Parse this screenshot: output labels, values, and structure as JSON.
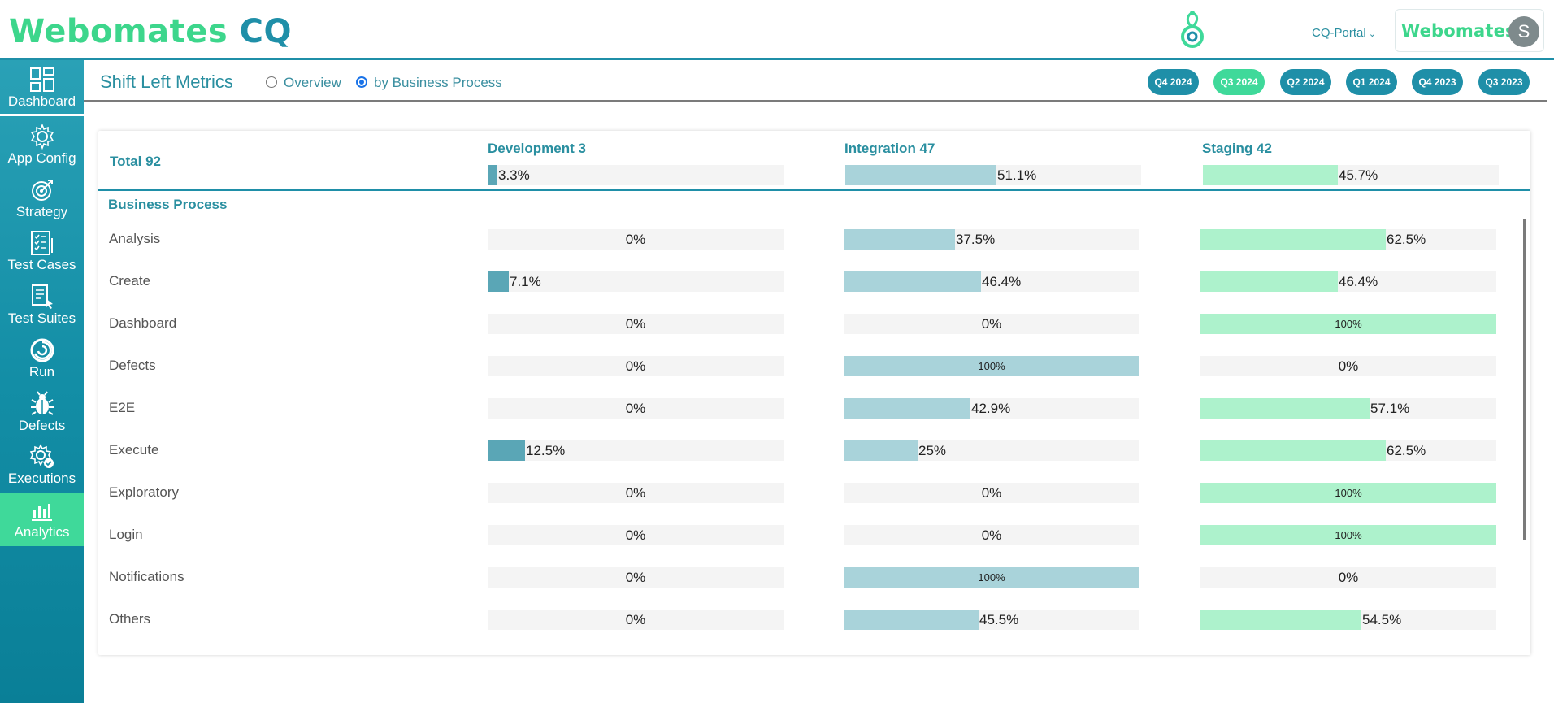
{
  "header": {
    "logo_main": "Webomates",
    "logo_accent": "CQ",
    "portal_label": "CQ-Portal",
    "brand_name": "Webomates",
    "avatar_letter": "S"
  },
  "sidebar": {
    "items": [
      {
        "label": "Dashboard",
        "icon": "dashboard-icon"
      },
      {
        "label": "App Config",
        "icon": "gear-icon"
      },
      {
        "label": "Strategy",
        "icon": "target-icon"
      },
      {
        "label": "Test Cases",
        "icon": "test-cases-icon"
      },
      {
        "label": "Test Suites",
        "icon": "test-suites-icon"
      },
      {
        "label": "Run",
        "icon": "run-icon"
      },
      {
        "label": "Defects",
        "icon": "bug-icon"
      },
      {
        "label": "Executions",
        "icon": "executions-icon"
      },
      {
        "label": "Analytics",
        "icon": "analytics-icon",
        "active": true
      }
    ]
  },
  "page": {
    "title": "Shift Left Metrics",
    "views": [
      {
        "label": "Overview",
        "selected": false
      },
      {
        "label": "by Business Process",
        "selected": true
      }
    ],
    "quarters": [
      {
        "label": "Q4 2024",
        "active": false
      },
      {
        "label": "Q3 2024",
        "active": true
      },
      {
        "label": "Q2 2024",
        "active": false
      },
      {
        "label": "Q1 2024",
        "active": false
      },
      {
        "label": "Q4 2023",
        "active": false
      },
      {
        "label": "Q3 2023",
        "active": false
      }
    ]
  },
  "summary": {
    "total_label": "Total 92",
    "columns": [
      {
        "label": "Development 3",
        "pct_label": "3.3%",
        "value": 3.3
      },
      {
        "label": "Integration 47",
        "pct_label": "51.1%",
        "value": 51.1
      },
      {
        "label": "Staging 42",
        "pct_label": "45.7%",
        "value": 45.7
      }
    ]
  },
  "section_title": "Business Process",
  "rows": [
    {
      "label": "Analysis",
      "dev": {
        "value": 0,
        "label": "0%"
      },
      "int": {
        "value": 37.5,
        "label": "37.5%"
      },
      "stg": {
        "value": 62.5,
        "label": "62.5%"
      }
    },
    {
      "label": "Create",
      "dev": {
        "value": 7.1,
        "label": "7.1%"
      },
      "int": {
        "value": 46.4,
        "label": "46.4%"
      },
      "stg": {
        "value": 46.4,
        "label": "46.4%"
      }
    },
    {
      "label": "Dashboard",
      "dev": {
        "value": 0,
        "label": "0%"
      },
      "int": {
        "value": 0,
        "label": "0%"
      },
      "stg": {
        "value": 100,
        "label": "100%"
      }
    },
    {
      "label": "Defects",
      "dev": {
        "value": 0,
        "label": "0%"
      },
      "int": {
        "value": 100,
        "label": "100%"
      },
      "stg": {
        "value": 0,
        "label": "0%"
      }
    },
    {
      "label": "E2E",
      "dev": {
        "value": 0,
        "label": "0%"
      },
      "int": {
        "value": 42.9,
        "label": "42.9%"
      },
      "stg": {
        "value": 57.1,
        "label": "57.1%"
      }
    },
    {
      "label": "Execute",
      "dev": {
        "value": 12.5,
        "label": "12.5%"
      },
      "int": {
        "value": 25,
        "label": "25%"
      },
      "stg": {
        "value": 62.5,
        "label": "62.5%"
      }
    },
    {
      "label": "Exploratory",
      "dev": {
        "value": 0,
        "label": "0%"
      },
      "int": {
        "value": 0,
        "label": "0%"
      },
      "stg": {
        "value": 100,
        "label": "100%"
      }
    },
    {
      "label": "Login",
      "dev": {
        "value": 0,
        "label": "0%"
      },
      "int": {
        "value": 0,
        "label": "0%"
      },
      "stg": {
        "value": 100,
        "label": "100%"
      }
    },
    {
      "label": "Notifications",
      "dev": {
        "value": 0,
        "label": "0%"
      },
      "int": {
        "value": 100,
        "label": "100%"
      },
      "stg": {
        "value": 0,
        "label": "0%"
      }
    },
    {
      "label": "Others",
      "dev": {
        "value": 0,
        "label": "0%"
      },
      "int": {
        "value": 45.5,
        "label": "45.5%"
      },
      "stg": {
        "value": 54.5,
        "label": "54.5%"
      }
    }
  ],
  "colors": {
    "primary": "#1f8fa8",
    "accent": "#3fd99a",
    "dev_bar": "#5aa6b6",
    "int_bar": "#a9d3da",
    "stg_bar": "#adf2cc"
  }
}
